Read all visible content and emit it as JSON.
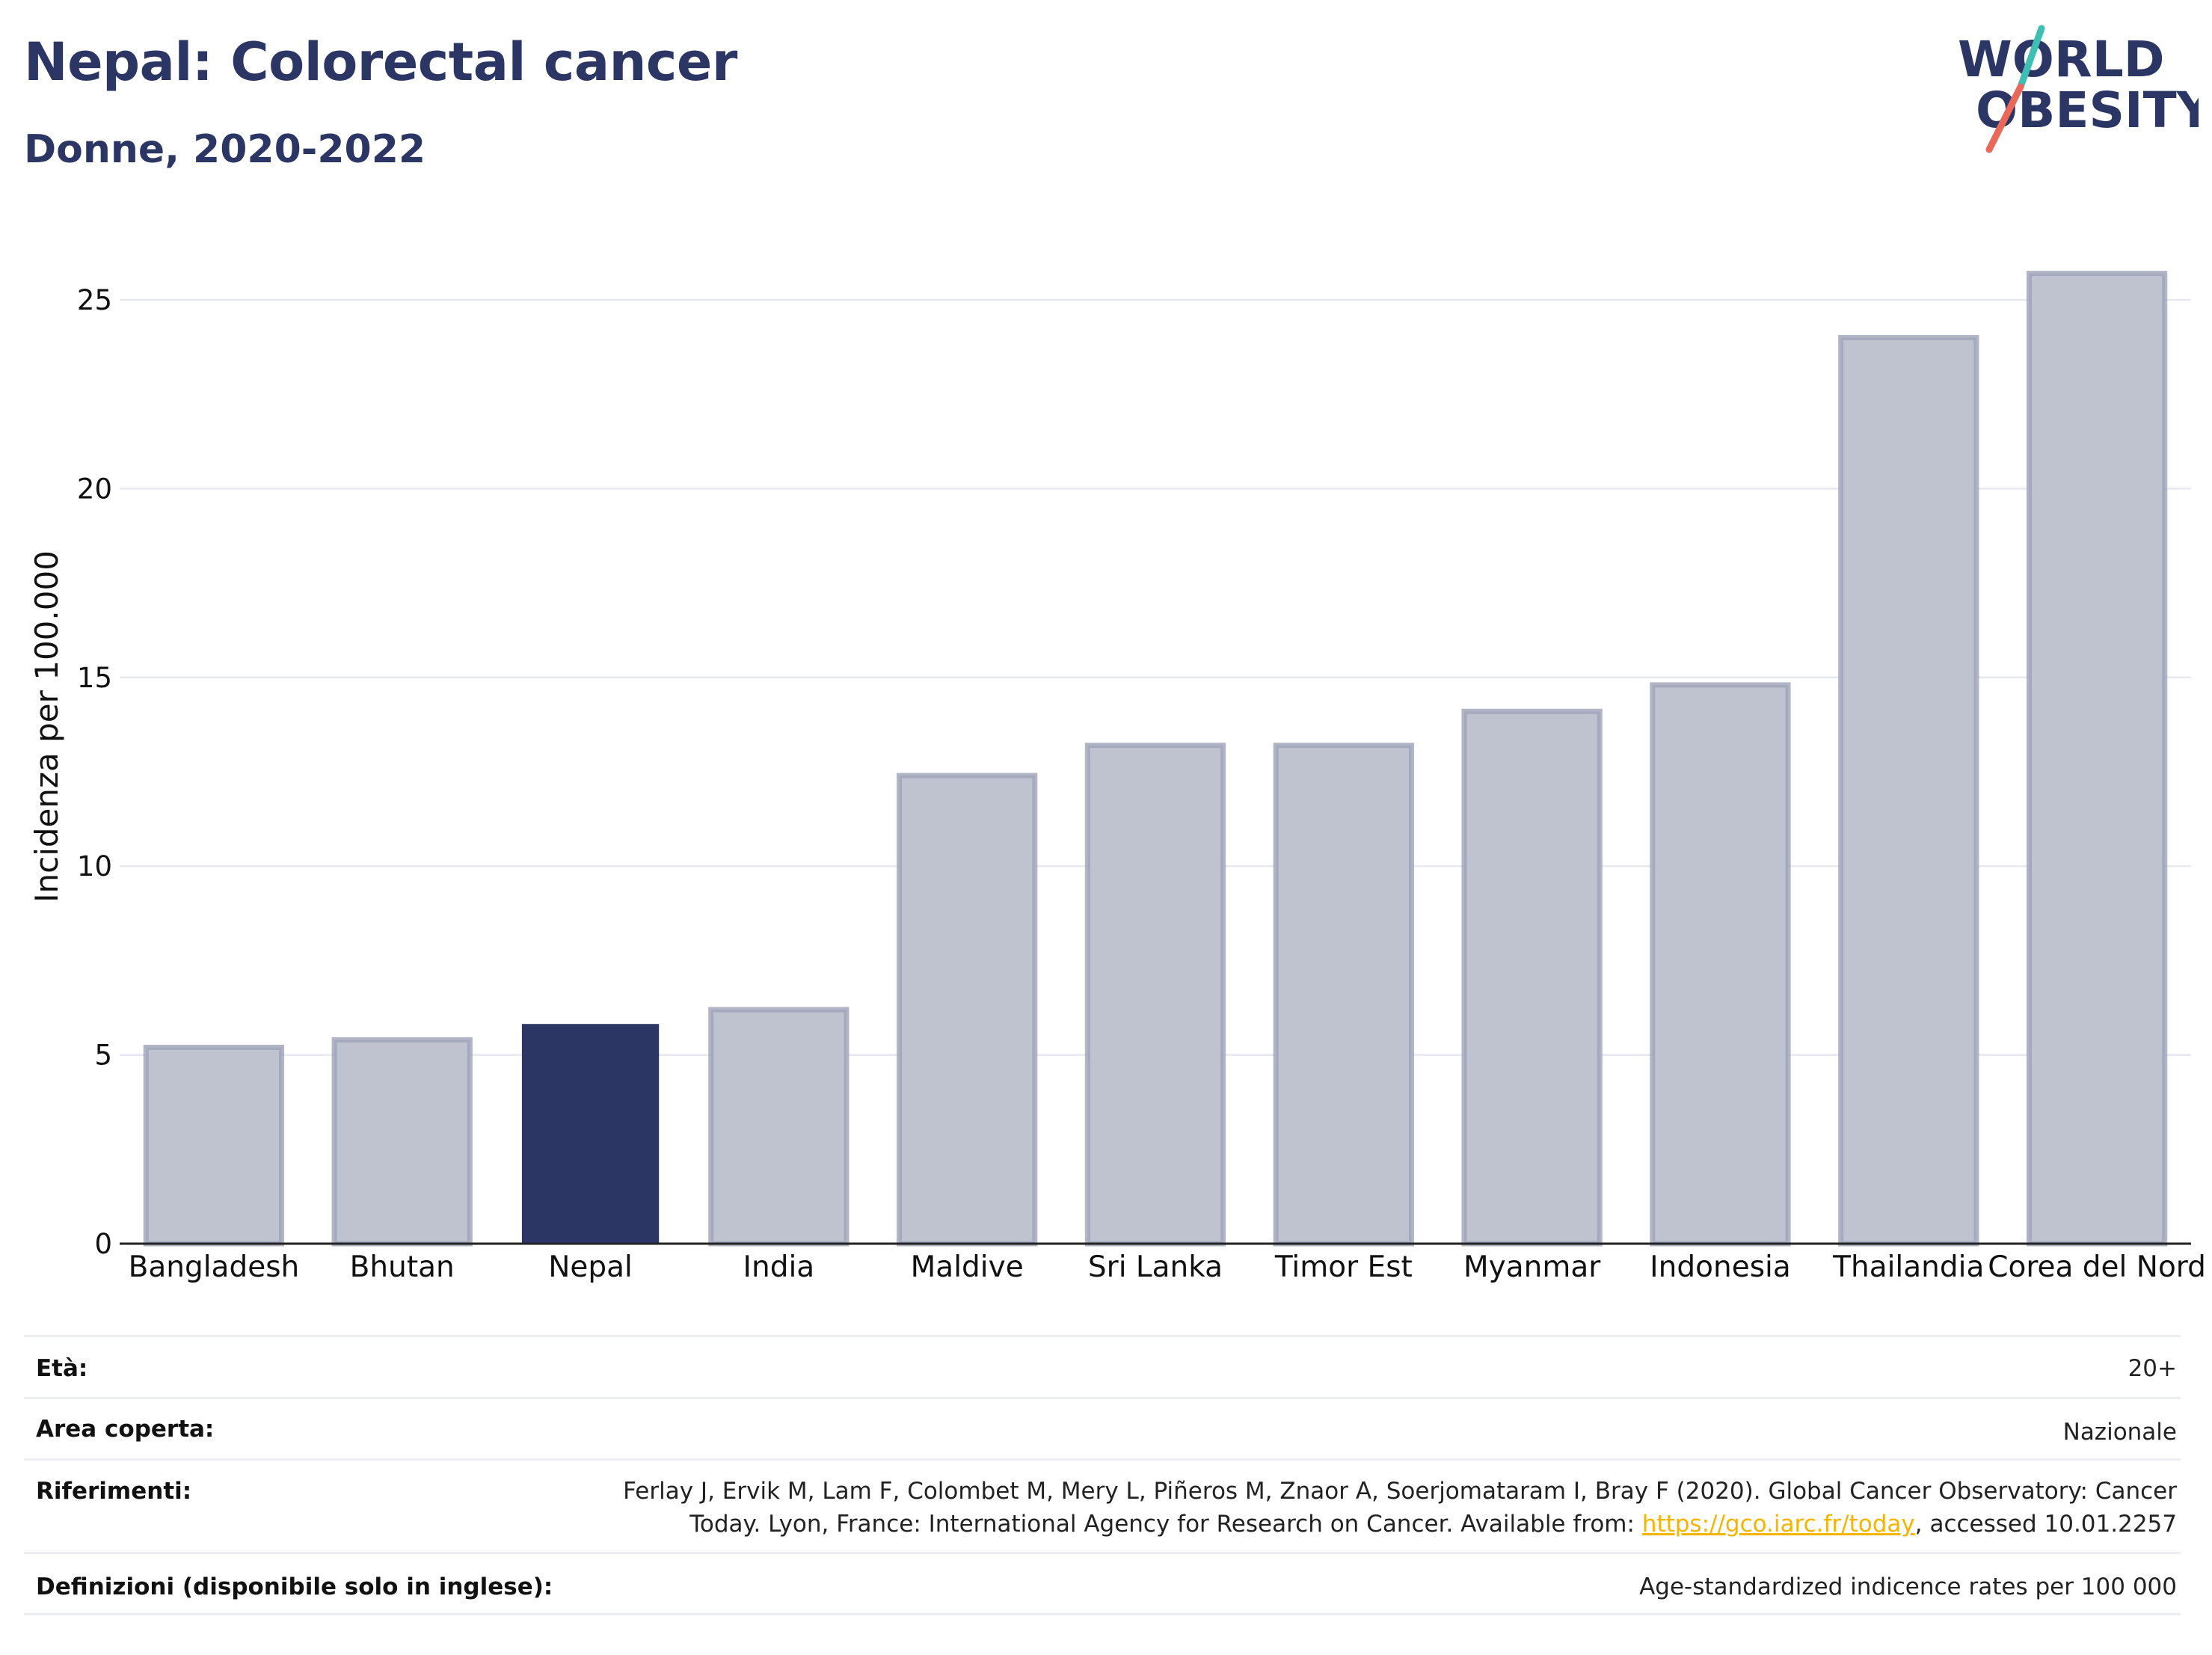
{
  "header": {
    "title": "Nepal: Colorectal cancer",
    "subtitle": "Donne, 2020-2022",
    "logo_top": "WORLD",
    "logo_bottom": "OBESITY"
  },
  "colors": {
    "highlight": "#2b3664",
    "bar_fill": "#bfc3d0",
    "bar_stroke": "#9ea3b8",
    "logo_teal": "#3fbfb3",
    "logo_red": "#e8685a",
    "link": "#f5b400"
  },
  "chart_data": {
    "type": "bar",
    "categories": [
      "Bangladesh",
      "Bhutan",
      "Nepal",
      "India",
      "Maldive",
      "Sri Lanka",
      "Timor Est",
      "Myanmar",
      "Indonesia",
      "Thailandia",
      "Corea del Nord"
    ],
    "values": [
      5.2,
      5.4,
      5.8,
      6.2,
      12.4,
      13.2,
      13.2,
      14.1,
      14.8,
      24.0,
      25.7
    ],
    "highlight": "Nepal",
    "ylabel": "Incidenza per 100.000",
    "ylim": [
      0,
      27
    ],
    "yticks": [
      0,
      5,
      10,
      15,
      20,
      25
    ],
    "grid": true,
    "legend": "none"
  },
  "meta": {
    "age_label": "Età:",
    "age_value": "20+",
    "area_label": "Area coperta:",
    "area_value": "Nazionale",
    "refs_label": "Riferimenti:",
    "refs_line1": "Ferlay J, Ervik M, Lam F, Colombet M, Mery L, Piñeros M, Znaor A, Soerjomataram I, Bray F (2020). Global Cancer Observatory: Cancer",
    "refs_line2_pre": "Today. Lyon, France: International Agency for Research on Cancer. Available from: ",
    "refs_link": "https://gco.iarc.fr/today",
    "refs_line2_post": ", accessed 10.01.2257",
    "defs_label": "Definizioni (disponibile solo in inglese):",
    "defs_value": "Age-standardized indicence rates per 100 000"
  }
}
